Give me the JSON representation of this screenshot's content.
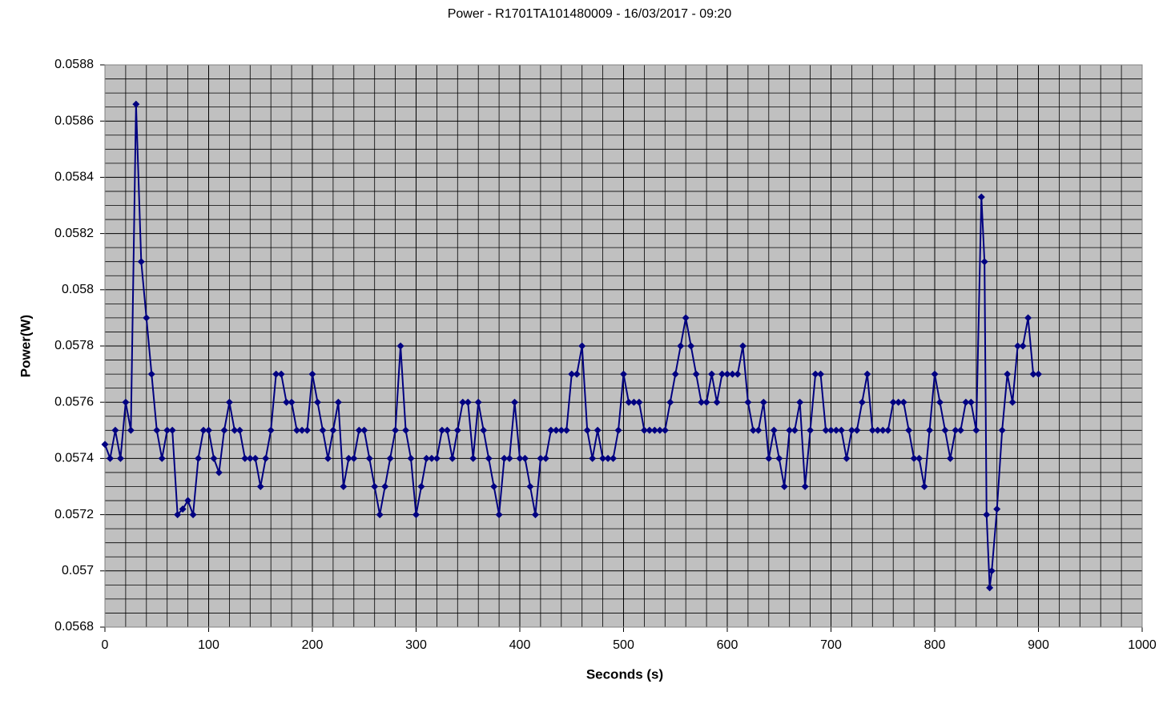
{
  "chart_data": {
    "type": "line",
    "title": "Power - R1701TA101480009 - 16/03/2017 - 09:20",
    "x_label": "Seconds (s)",
    "y_label": "Power(W)",
    "color": "#000080",
    "marker": "diamond",
    "grid": true,
    "xlim": [
      0,
      1000
    ],
    "xticks": [
      0,
      100,
      200,
      300,
      400,
      500,
      600,
      700,
      800,
      900,
      1000
    ],
    "ylim": [
      0.0568,
      0.0588
    ],
    "yticks": [
      0.0568,
      0.057,
      0.0572,
      0.0574,
      0.0576,
      0.0578,
      0.058,
      0.0582,
      0.0584,
      0.0586,
      0.0588
    ],
    "x_minor_ticks": [
      20,
      40,
      60,
      80,
      120,
      140,
      160,
      180,
      220,
      240,
      260,
      280,
      320,
      340,
      360,
      380,
      420,
      440,
      460,
      480,
      520,
      540,
      560,
      580,
      620,
      640,
      660,
      680,
      720,
      740,
      760,
      780,
      820,
      840,
      860,
      880,
      920,
      940,
      960,
      980
    ],
    "y_minor_ticks": [
      0.05685,
      0.0569,
      0.05695,
      0.05705,
      0.0571,
      0.05715,
      0.05725,
      0.0573,
      0.05735,
      0.05745,
      0.0575,
      0.05755,
      0.05765,
      0.0577,
      0.05775,
      0.05785,
      0.0579,
      0.05795,
      0.05805,
      0.0581,
      0.05815,
      0.05825,
      0.0583,
      0.05835,
      0.05845,
      0.0585,
      0.05855,
      0.05865,
      0.0587,
      0.05875
    ],
    "series": [
      {
        "name": "Power",
        "color": "#000080",
        "x": [
          0,
          5,
          10,
          15,
          20,
          25,
          30,
          35,
          40,
          45,
          50,
          55,
          60,
          65,
          70,
          75,
          80,
          85,
          90,
          95,
          100,
          105,
          110,
          115,
          120,
          125,
          130,
          135,
          140,
          145,
          150,
          155,
          160,
          165,
          170,
          175,
          180,
          185,
          190,
          195,
          200,
          205,
          210,
          215,
          220,
          225,
          230,
          235,
          240,
          245,
          250,
          255,
          260,
          265,
          270,
          275,
          280,
          285,
          290,
          295,
          300,
          305,
          310,
          315,
          320,
          325,
          330,
          335,
          340,
          345,
          350,
          355,
          360,
          365,
          370,
          375,
          380,
          385,
          390,
          395,
          400,
          405,
          410,
          415,
          420,
          425,
          430,
          435,
          440,
          445,
          450,
          455,
          460,
          465,
          470,
          475,
          480,
          485,
          490,
          495,
          500,
          505,
          510,
          515,
          520,
          525,
          530,
          535,
          540,
          545,
          550,
          555,
          560,
          565,
          570,
          575,
          580,
          585,
          590,
          595,
          600,
          605,
          610,
          615,
          620,
          625,
          630,
          635,
          640,
          645,
          650,
          655,
          660,
          665,
          670,
          675,
          680,
          685,
          690,
          695,
          700,
          705,
          710,
          715,
          720,
          725,
          730,
          735,
          740,
          745,
          750,
          755,
          760,
          765,
          770,
          775,
          780,
          785,
          790,
          795,
          800,
          805,
          810,
          815,
          820,
          825,
          830,
          835,
          840,
          845,
          848,
          850,
          853,
          855,
          860,
          865,
          870,
          875,
          880,
          885,
          890,
          895,
          900
        ],
        "values": [
          0.05745,
          0.0574,
          0.0575,
          0.0574,
          0.0576,
          0.0575,
          0.05866,
          0.0581,
          0.0579,
          0.0577,
          0.0575,
          0.0574,
          0.0575,
          0.0575,
          0.0572,
          0.05722,
          0.05725,
          0.0572,
          0.0574,
          0.0575,
          0.0575,
          0.0574,
          0.05735,
          0.0575,
          0.0576,
          0.0575,
          0.0575,
          0.0574,
          0.0574,
          0.0574,
          0.0573,
          0.0574,
          0.0575,
          0.0577,
          0.0577,
          0.0576,
          0.0576,
          0.0575,
          0.0575,
          0.0575,
          0.0577,
          0.0576,
          0.0575,
          0.0574,
          0.0575,
          0.0576,
          0.0573,
          0.0574,
          0.0574,
          0.0575,
          0.0575,
          0.0574,
          0.0573,
          0.0572,
          0.0573,
          0.0574,
          0.0575,
          0.0578,
          0.0575,
          0.0574,
          0.0572,
          0.0573,
          0.0574,
          0.0574,
          0.0574,
          0.0575,
          0.0575,
          0.0574,
          0.0575,
          0.0576,
          0.0576,
          0.0574,
          0.0576,
          0.0575,
          0.0574,
          0.0573,
          0.0572,
          0.0574,
          0.0574,
          0.0576,
          0.0574,
          0.0574,
          0.0573,
          0.0572,
          0.0574,
          0.0574,
          0.0575,
          0.0575,
          0.0575,
          0.0575,
          0.0577,
          0.0577,
          0.0578,
          0.0575,
          0.0574,
          0.0575,
          0.0574,
          0.0574,
          0.0574,
          0.0575,
          0.0577,
          0.0576,
          0.0576,
          0.0576,
          0.0575,
          0.0575,
          0.0575,
          0.0575,
          0.0575,
          0.0576,
          0.0577,
          0.0578,
          0.0579,
          0.0578,
          0.0577,
          0.0576,
          0.0576,
          0.0577,
          0.0576,
          0.0577,
          0.0577,
          0.0577,
          0.0577,
          0.0578,
          0.0576,
          0.0575,
          0.0575,
          0.0576,
          0.0574,
          0.0575,
          0.0574,
          0.0573,
          0.0575,
          0.0575,
          0.0576,
          0.0573,
          0.0575,
          0.0577,
          0.0577,
          0.0575,
          0.0575,
          0.0575,
          0.0575,
          0.0574,
          0.0575,
          0.0575,
          0.0576,
          0.0577,
          0.0575,
          0.0575,
          0.0575,
          0.0575,
          0.0576,
          0.0576,
          0.0576,
          0.0575,
          0.0574,
          0.0574,
          0.0573,
          0.0575,
          0.0577,
          0.0576,
          0.0575,
          0.0574,
          0.0575,
          0.0575,
          0.0576,
          0.0576,
          0.0575,
          0.05833,
          0.0581,
          0.0572,
          0.05694,
          0.057,
          0.05722,
          0.0575,
          0.0577,
          0.0576,
          0.0578,
          0.0578,
          0.0579,
          0.0577,
          0.0577
        ]
      }
    ]
  }
}
